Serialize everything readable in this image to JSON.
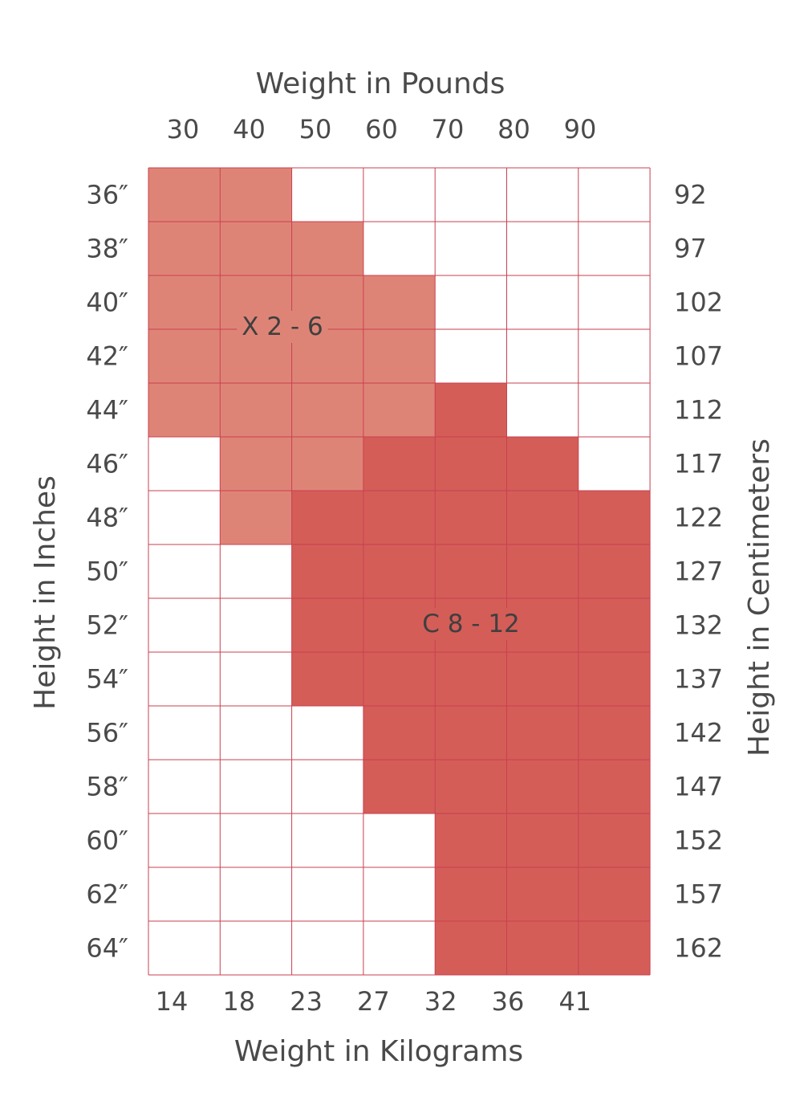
{
  "chart_data": {
    "type": "heatmap",
    "title": "",
    "top_axis_label": "Weight in Pounds",
    "bottom_axis_label": "Weight in Kilograms",
    "left_axis_label": "Height in Inches",
    "right_axis_label": "Height in Centimeters",
    "pounds_ticks": [
      "30",
      "40",
      "50",
      "60",
      "70",
      "80",
      "90"
    ],
    "kilogram_ticks": [
      "14",
      "18",
      "23",
      "27",
      "32",
      "36",
      "41"
    ],
    "inch_ticks": [
      "36″",
      "38″",
      "40″",
      "42″",
      "44″",
      "46″",
      "48″",
      "50″",
      "52″",
      "54″",
      "56″",
      "58″",
      "60″",
      "62″",
      "64″"
    ],
    "centimeter_ticks": [
      "92",
      "97",
      "102",
      "107",
      "112",
      "117",
      "122",
      "127",
      "132",
      "137",
      "142",
      "147",
      "152",
      "157",
      "162"
    ],
    "regions": [
      {
        "label": "X 2 - 6",
        "color": "#de8477"
      },
      {
        "label": "C 8 - 12",
        "color": "#d45d58"
      }
    ],
    "empty_color": "#ffffff",
    "grid_color": "#c9404f",
    "grid": [
      [
        1,
        1,
        0,
        0,
        0,
        0,
        0
      ],
      [
        1,
        1,
        1,
        0,
        0,
        0,
        0
      ],
      [
        1,
        1,
        1,
        1,
        0,
        0,
        0
      ],
      [
        1,
        1,
        1,
        1,
        0,
        0,
        0
      ],
      [
        1,
        1,
        1,
        1,
        2,
        0,
        0
      ],
      [
        0,
        1,
        1,
        2,
        2,
        2,
        0
      ],
      [
        0,
        1,
        2,
        2,
        2,
        2,
        2
      ],
      [
        0,
        0,
        2,
        2,
        2,
        2,
        2
      ],
      [
        0,
        0,
        2,
        2,
        2,
        2,
        2
      ],
      [
        0,
        0,
        2,
        2,
        2,
        2,
        2
      ],
      [
        0,
        0,
        0,
        2,
        2,
        2,
        2
      ],
      [
        0,
        0,
        0,
        2,
        2,
        2,
        2
      ],
      [
        0,
        0,
        0,
        0,
        2,
        2,
        2
      ],
      [
        0,
        0,
        0,
        0,
        2,
        2,
        2
      ],
      [
        0,
        0,
        0,
        0,
        2,
        2,
        2
      ]
    ]
  }
}
